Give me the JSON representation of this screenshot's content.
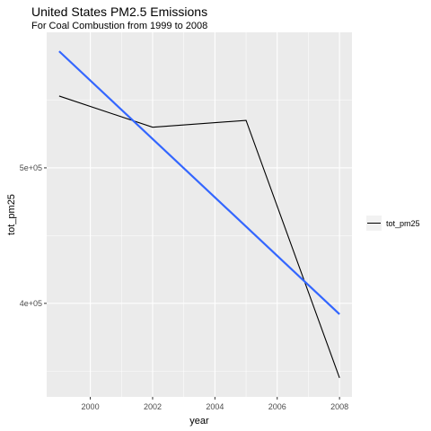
{
  "chart_data": {
    "type": "line",
    "title": "United States PM2.5 Emissions",
    "subtitle": "For Coal Combustion from 1999 to 2008",
    "xlabel": "year",
    "ylabel": "tot_pm25",
    "x": [
      1999,
      2002,
      2005,
      2008
    ],
    "series": [
      {
        "name": "tot_pm25",
        "values": [
          553000,
          530000,
          535000,
          345000
        ]
      }
    ],
    "trend_line": {
      "x": [
        1999,
        2008
      ],
      "values": [
        586000,
        392000
      ]
    },
    "xlim": [
      1998.6,
      2008.4
    ],
    "ylim": [
      331000,
      600000
    ],
    "x_ticks": [
      2000,
      2002,
      2004,
      2006,
      2008
    ],
    "x_tick_labels": [
      "2000",
      "2002",
      "2004",
      "2006",
      "2008"
    ],
    "y_ticks": [
      400000,
      500000
    ],
    "y_tick_labels": [
      "4e+05",
      "5e+05"
    ],
    "y_minor_ticks": [
      350000,
      450000,
      550000
    ],
    "grid": true,
    "legend_position": "right",
    "colors": {
      "panel_bg": "#ebebeb",
      "grid": "#ffffff",
      "series": "#000000",
      "trend": "#3366ff",
      "tick_text": "#4d4d4d",
      "tick_mark": "#333333"
    }
  }
}
